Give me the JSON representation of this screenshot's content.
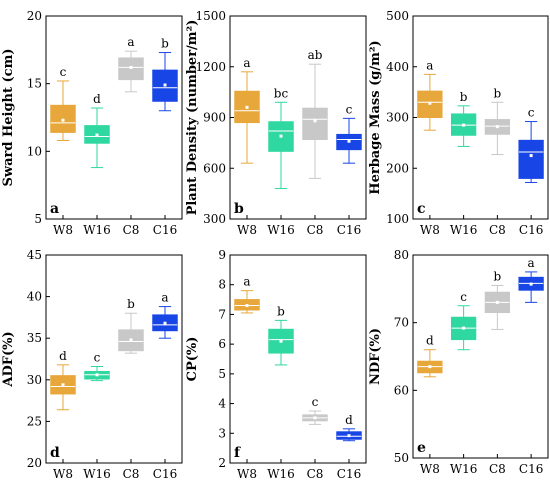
{
  "colors": {
    "W8": "#e8a73a",
    "W16": "#2fd8a0",
    "C8": "#c8c8c8",
    "C16": "#1846e6",
    "axis": "#000000"
  },
  "chart_data": [
    {
      "type": "box",
      "panel": "a",
      "ylabel": "Sward Height (cm)",
      "ylim": [
        5,
        20
      ],
      "yticks": [
        5,
        10,
        15,
        20
      ],
      "categories": [
        "W8",
        "W16",
        "C8",
        "C16"
      ],
      "boxes": [
        {
          "min": 10.8,
          "q1": 11.4,
          "median": 12.1,
          "q3": 13.4,
          "max": 15.2,
          "mean": 12.3,
          "letter": "c"
        },
        {
          "min": 8.8,
          "q1": 10.6,
          "median": 11.1,
          "q3": 11.9,
          "max": 13.2,
          "mean": 11.2,
          "letter": "d"
        },
        {
          "min": 14.4,
          "q1": 15.3,
          "median": 16.2,
          "q3": 16.9,
          "max": 17.4,
          "mean": 16.2,
          "letter": "a"
        },
        {
          "min": 13.0,
          "q1": 13.7,
          "median": 14.7,
          "q3": 16.0,
          "max": 17.3,
          "mean": 14.9,
          "letter": "b"
        }
      ]
    },
    {
      "type": "box",
      "panel": "b",
      "ylabel": "Plant Density (number/m²)",
      "ylim": [
        300,
        1500
      ],
      "yticks": [
        300,
        600,
        900,
        1200,
        1500
      ],
      "categories": [
        "W8",
        "W16",
        "C8",
        "C16"
      ],
      "boxes": [
        {
          "min": 630,
          "q1": 870,
          "median": 940,
          "q3": 1055,
          "max": 1170,
          "mean": 960,
          "letter": "a"
        },
        {
          "min": 480,
          "q1": 700,
          "median": 820,
          "q3": 875,
          "max": 990,
          "mean": 790,
          "letter": "bc"
        },
        {
          "min": 540,
          "q1": 770,
          "median": 890,
          "q3": 955,
          "max": 1215,
          "mean": 880,
          "letter": "ab"
        },
        {
          "min": 630,
          "q1": 710,
          "median": 770,
          "q3": 800,
          "max": 895,
          "mean": 760,
          "letter": "c"
        }
      ]
    },
    {
      "type": "box",
      "panel": "c",
      "ylabel": "Herbage Mass (g/m²)",
      "ylim": [
        100,
        500
      ],
      "yticks": [
        100,
        200,
        300,
        400,
        500
      ],
      "categories": [
        "W8",
        "W16",
        "C8",
        "C16"
      ],
      "boxes": [
        {
          "min": 275,
          "q1": 300,
          "median": 330,
          "q3": 352,
          "max": 385,
          "mean": 328,
          "letter": "a"
        },
        {
          "min": 243,
          "q1": 265,
          "median": 285,
          "q3": 307,
          "max": 323,
          "mean": 285,
          "letter": "b"
        },
        {
          "min": 227,
          "q1": 267,
          "median": 283,
          "q3": 296,
          "max": 330,
          "mean": 282,
          "letter": "b"
        },
        {
          "min": 172,
          "q1": 180,
          "median": 232,
          "q3": 255,
          "max": 292,
          "mean": 225,
          "letter": "c"
        }
      ]
    },
    {
      "type": "box",
      "panel": "d",
      "ylabel": "ADF(%)",
      "ylim": [
        20,
        45
      ],
      "yticks": [
        20,
        25,
        30,
        35,
        40,
        45
      ],
      "categories": [
        "W8",
        "W16",
        "C8",
        "C16"
      ],
      "boxes": [
        {
          "min": 26.4,
          "q1": 28.3,
          "median": 29.2,
          "q3": 30.5,
          "max": 31.8,
          "mean": 29.4,
          "letter": "d"
        },
        {
          "min": 29.9,
          "q1": 30.1,
          "median": 30.6,
          "q3": 31.0,
          "max": 31.6,
          "mean": 30.6,
          "letter": "c"
        },
        {
          "min": 33.2,
          "q1": 33.5,
          "median": 34.6,
          "q3": 36.0,
          "max": 38.0,
          "mean": 34.8,
          "letter": "b"
        },
        {
          "min": 35.0,
          "q1": 35.9,
          "median": 36.6,
          "q3": 37.8,
          "max": 38.8,
          "mean": 36.8,
          "letter": "a"
        }
      ]
    },
    {
      "type": "box",
      "panel": "f",
      "ylabel": "CP(%)",
      "ylim": [
        2,
        9
      ],
      "yticks": [
        2,
        3,
        4,
        5,
        6,
        7,
        8,
        9
      ],
      "categories": [
        "W8",
        "W16",
        "C8",
        "C16"
      ],
      "boxes": [
        {
          "min": 7.05,
          "q1": 7.15,
          "median": 7.3,
          "q3": 7.5,
          "max": 7.8,
          "mean": 7.3,
          "letter": "a"
        },
        {
          "min": 5.3,
          "q1": 5.7,
          "median": 6.15,
          "q3": 6.5,
          "max": 6.8,
          "mean": 6.1,
          "letter": "b"
        },
        {
          "min": 3.3,
          "q1": 3.42,
          "median": 3.52,
          "q3": 3.62,
          "max": 3.75,
          "mean": 3.52,
          "letter": "c"
        },
        {
          "min": 2.75,
          "q1": 2.8,
          "median": 2.9,
          "q3": 3.05,
          "max": 3.15,
          "mean": 2.92,
          "letter": "d"
        }
      ]
    },
    {
      "type": "box",
      "panel": "e",
      "ylabel": "NDF(%)",
      "ylim": [
        50,
        80
      ],
      "yticks": [
        50,
        60,
        70,
        80
      ],
      "categories": [
        "W8",
        "W16",
        "C8",
        "C16"
      ],
      "boxes": [
        {
          "min": 62.0,
          "q1": 62.6,
          "median": 63.5,
          "q3": 64.3,
          "max": 66.0,
          "mean": 63.5,
          "letter": "d"
        },
        {
          "min": 66.0,
          "q1": 67.5,
          "median": 69.2,
          "q3": 70.8,
          "max": 72.5,
          "mean": 69.2,
          "letter": "c"
        },
        {
          "min": 69.0,
          "q1": 71.5,
          "median": 73.0,
          "q3": 74.5,
          "max": 75.5,
          "mean": 73.0,
          "letter": "b"
        },
        {
          "min": 73.0,
          "q1": 74.8,
          "median": 75.8,
          "q3": 76.7,
          "max": 77.5,
          "mean": 75.7,
          "letter": "a"
        }
      ]
    }
  ]
}
